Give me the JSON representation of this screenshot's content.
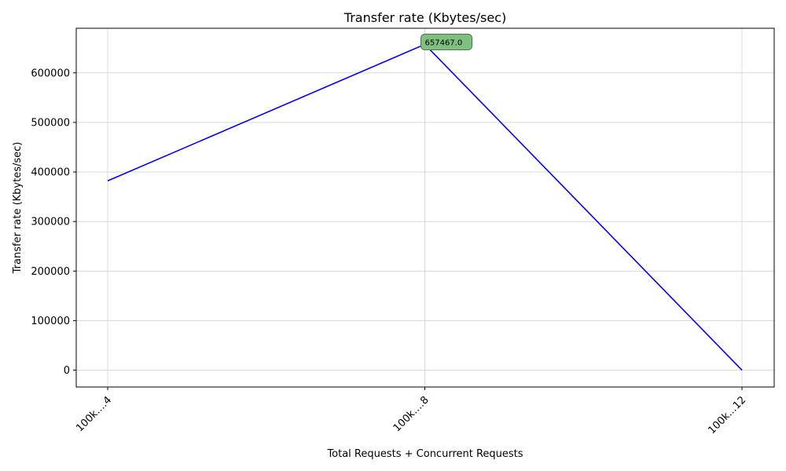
{
  "chart_data": {
    "type": "line",
    "title": "Transfer rate (Kbytes/sec)",
    "xlabel": "Total Requests + Concurrent Requests",
    "ylabel": "Transfer rate (Kbytes/sec)",
    "categories": [
      "100k....4",
      "100k....8",
      "100k...12"
    ],
    "series": [
      {
        "values": [
          382000,
          657467.0,
          0
        ]
      }
    ],
    "ylim": [
      -34000,
      690000
    ],
    "yticks": [
      0,
      100000,
      200000,
      300000,
      400000,
      500000,
      600000
    ],
    "ytick_labels": [
      "0",
      "100000",
      "200000",
      "300000",
      "400000",
      "500000",
      "600000"
    ],
    "grid": true,
    "annotation": {
      "category_index": 1,
      "value": 657467.0,
      "text": "657467.0"
    },
    "colors": {
      "line": "#0000ff",
      "marker": "#008000",
      "annotation_bg": "#7fbf7f",
      "annotation_border": "#3f7f3f",
      "grid": "#d3d3d3"
    }
  }
}
